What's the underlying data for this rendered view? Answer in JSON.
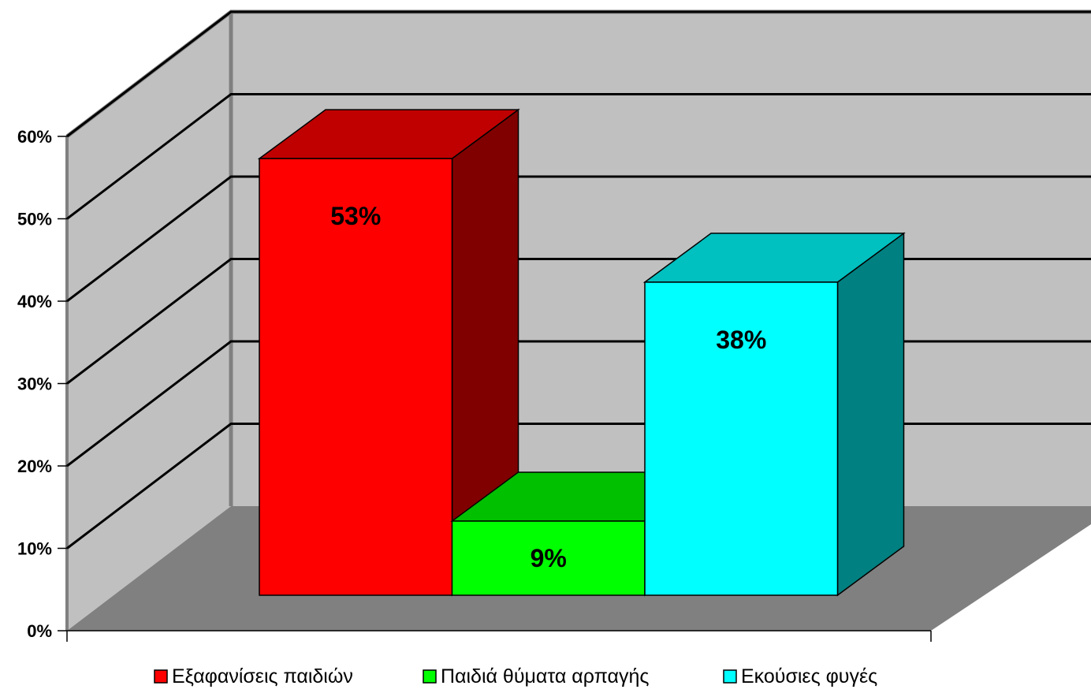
{
  "chart_data": {
    "type": "bar",
    "style": "3d-column",
    "categories": [
      "Εξαφανίσεις παιδιών",
      "Παιδιά θύματα αρπαγής",
      "Εκούσιες φυγές"
    ],
    "values": [
      53,
      9,
      38
    ],
    "value_labels": [
      "53%",
      "9%",
      "38%"
    ],
    "y_ticks": [
      "0%",
      "10%",
      "20%",
      "30%",
      "40%",
      "50%",
      "60%"
    ],
    "ylim": [
      0,
      60
    ],
    "grid": true,
    "legend": {
      "position": "bottom",
      "items": [
        {
          "label": "Εξαφανίσεις παιδιών",
          "color": "#ff0000"
        },
        {
          "label": "Παιδιά θύματα αρπαγής",
          "color": "#00ff00"
        },
        {
          "label": "Εκούσιες φυγές",
          "color": "#00ffff"
        }
      ]
    },
    "colors": {
      "front": [
        "#ff0000",
        "#00ff00",
        "#00ffff"
      ],
      "top": [
        "#c00000",
        "#00c000",
        "#00c0c0"
      ],
      "side": [
        "#800000",
        "#008000",
        "#008080"
      ],
      "back_wall": "#c0c0c0",
      "floor": "#808080",
      "wall_edge": "#808080"
    }
  }
}
